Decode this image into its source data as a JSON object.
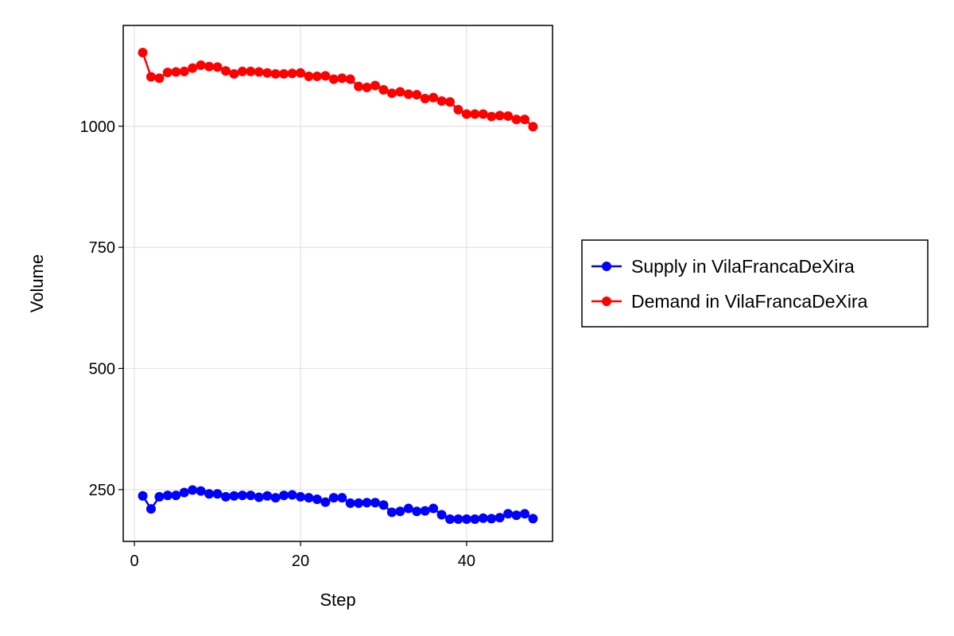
{
  "chart_data": {
    "type": "line",
    "title": "",
    "xlabel": "Step",
    "ylabel": "Volume",
    "xlim": [
      -1.35,
      50.35
    ],
    "ylim": [
      143,
      1208
    ],
    "x_ticks": [
      0,
      20,
      40
    ],
    "y_ticks": [
      250,
      500,
      750,
      1000
    ],
    "grid": true,
    "legend_position": "right",
    "x": [
      1,
      2,
      3,
      4,
      5,
      6,
      7,
      8,
      9,
      10,
      11,
      12,
      13,
      14,
      15,
      16,
      17,
      18,
      19,
      20,
      21,
      22,
      23,
      24,
      25,
      26,
      27,
      28,
      29,
      30,
      31,
      32,
      33,
      34,
      35,
      36,
      37,
      38,
      39,
      40,
      41,
      42,
      43,
      44,
      45,
      46,
      47,
      48
    ],
    "series": [
      {
        "name": "Supply in VilaFrancaDeXira",
        "color": "#0000ff",
        "values": [
          237,
          210,
          235,
          238,
          238,
          244,
          249,
          247,
          241,
          241,
          235,
          237,
          238,
          238,
          234,
          237,
          233,
          238,
          239,
          235,
          233,
          230,
          224,
          233,
          233,
          222,
          222,
          223,
          223,
          218,
          203,
          205,
          211,
          205,
          206,
          211,
          198,
          189,
          189,
          189,
          189,
          191,
          190,
          192,
          200,
          197,
          200,
          190
        ]
      },
      {
        "name": "Demand in VilaFrancaDeXira",
        "color": "#ff0000",
        "values": [
          1152,
          1102,
          1099,
          1111,
          1112,
          1113,
          1120,
          1126,
          1123,
          1122,
          1114,
          1108,
          1113,
          1113,
          1112,
          1110,
          1108,
          1108,
          1109,
          1110,
          1103,
          1103,
          1104,
          1097,
          1099,
          1097,
          1082,
          1080,
          1084,
          1075,
          1068,
          1071,
          1066,
          1065,
          1057,
          1059,
          1052,
          1050,
          1034,
          1025,
          1025,
          1025,
          1020,
          1022,
          1021,
          1014,
          1014,
          999
        ]
      }
    ]
  }
}
